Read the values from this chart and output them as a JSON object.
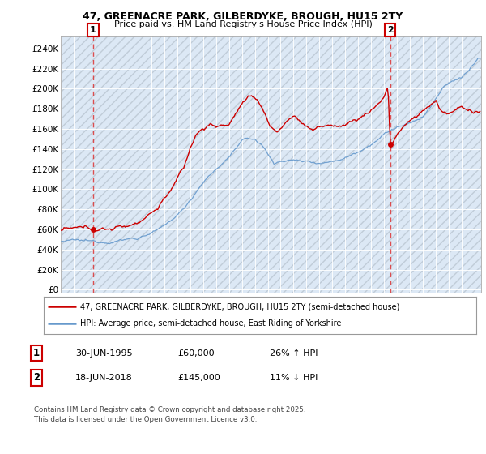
{
  "title1": "47, GREENACRE PARK, GILBERDYKE, BROUGH, HU15 2TY",
  "title2": "Price paid vs. HM Land Registry's House Price Index (HPI)",
  "yticks": [
    0,
    20000,
    40000,
    60000,
    80000,
    100000,
    120000,
    140000,
    160000,
    180000,
    200000,
    220000,
    240000
  ],
  "ylim": [
    -3000,
    252000
  ],
  "xlim_start": 1993.0,
  "xlim_end": 2025.5,
  "sale1_year": 1995.5,
  "sale1_price": 60000,
  "sale2_year": 2018.47,
  "sale2_price": 145000,
  "red_color": "#cc0000",
  "blue_color": "#6699cc",
  "dashed_color": "#dd3333",
  "annotation_box_color": "#cc0000",
  "legend_label1": "47, GREENACRE PARK, GILBERDYKE, BROUGH, HU15 2TY (semi-detached house)",
  "legend_label2": "HPI: Average price, semi-detached house, East Riding of Yorkshire",
  "table_row1": [
    "1",
    "30-JUN-1995",
    "£60,000",
    "26% ↑ HPI"
  ],
  "table_row2": [
    "2",
    "18-JUN-2018",
    "£145,000",
    "11% ↓ HPI"
  ],
  "footer": "Contains HM Land Registry data © Crown copyright and database right 2025.\nThis data is licensed under the Open Government Licence v3.0.",
  "background_color": "#ffffff",
  "plot_bg_color": "#dce8f5"
}
